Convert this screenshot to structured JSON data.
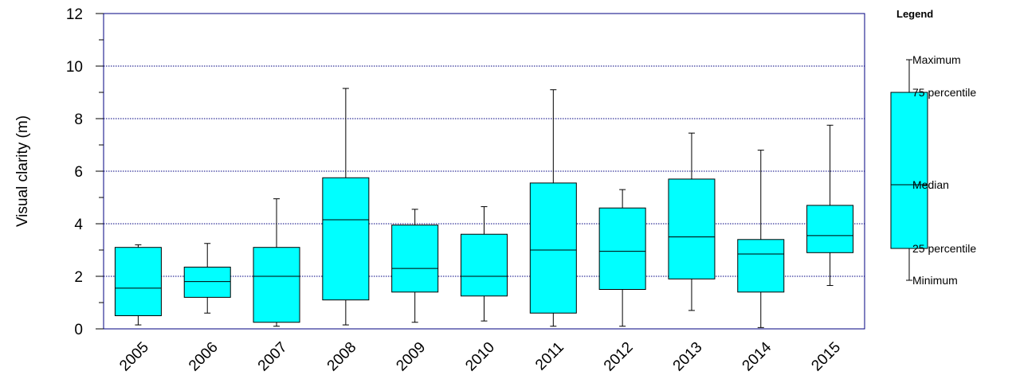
{
  "chart_data": {
    "type": "boxplot",
    "ylabel": "Visual clarity (m)",
    "ylim": [
      0,
      12
    ],
    "yticks": [
      0,
      2,
      4,
      6,
      8,
      10,
      12
    ],
    "ytick_labels": [
      "0",
      "2",
      "4",
      "6",
      "8",
      "10",
      "12"
    ],
    "grid": "horizontal dotted at 2, 4, 6, 8, 10",
    "categories": [
      "2005",
      "2006",
      "2007",
      "2008",
      "2009",
      "2010",
      "2011",
      "2012",
      "2013",
      "2014",
      "2015"
    ],
    "boxes": [
      {
        "category": "2005",
        "min": 0.15,
        "q1": 0.5,
        "median": 1.55,
        "q3": 3.1,
        "max": 3.2
      },
      {
        "category": "2006",
        "min": 0.6,
        "q1": 1.2,
        "median": 1.8,
        "q3": 2.35,
        "max": 3.25
      },
      {
        "category": "2007",
        "min": 0.1,
        "q1": 0.25,
        "median": 2.0,
        "q3": 3.1,
        "max": 4.95
      },
      {
        "category": "2008",
        "min": 0.15,
        "q1": 1.1,
        "median": 4.15,
        "q3": 5.75,
        "max": 9.15
      },
      {
        "category": "2009",
        "min": 0.25,
        "q1": 1.4,
        "median": 2.3,
        "q3": 3.95,
        "max": 4.55
      },
      {
        "category": "2010",
        "min": 0.3,
        "q1": 1.25,
        "median": 2.0,
        "q3": 3.6,
        "max": 4.65
      },
      {
        "category": "2011",
        "min": 0.1,
        "q1": 0.6,
        "median": 3.0,
        "q3": 5.55,
        "max": 9.1
      },
      {
        "category": "2012",
        "min": 0.1,
        "q1": 1.5,
        "median": 2.95,
        "q3": 4.6,
        "max": 5.3
      },
      {
        "category": "2013",
        "min": 0.7,
        "q1": 1.9,
        "median": 3.5,
        "q3": 5.7,
        "max": 7.45
      },
      {
        "category": "2014",
        "min": 0.05,
        "q1": 1.4,
        "median": 2.85,
        "q3": 3.4,
        "max": 6.8
      },
      {
        "category": "2015",
        "min": 1.65,
        "q1": 2.9,
        "median": 3.55,
        "q3": 4.7,
        "max": 7.75
      }
    ],
    "legend": {
      "title": "Legend",
      "labels": {
        "max": "Maximum",
        "q3": "75 percentile",
        "median": "Median",
        "q1": "25 percentile",
        "min": "Minimum"
      }
    },
    "colors": {
      "box_fill": "#00ffff",
      "frame": "#000080",
      "grid": "#000080",
      "stroke": "#000000"
    }
  }
}
